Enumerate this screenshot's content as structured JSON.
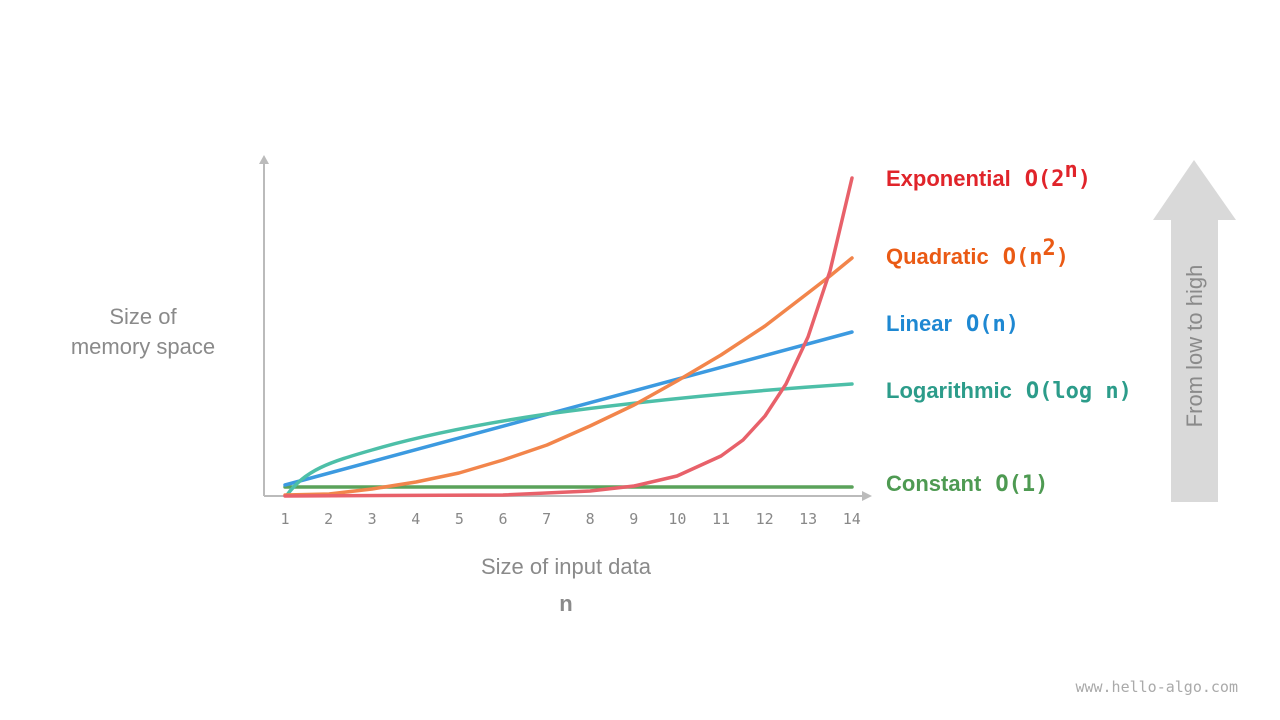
{
  "axes": {
    "y_label_lines": [
      "Size of",
      "memory space"
    ],
    "x_label": "Size of input data",
    "x_variable": "n",
    "x_ticks": [
      "1",
      "2",
      "3",
      "4",
      "5",
      "6",
      "7",
      "8",
      "9",
      "10",
      "11",
      "12",
      "13",
      "14"
    ]
  },
  "curves": [
    {
      "name": "Exponential",
      "notation": [
        "O(2",
        "n",
        ")"
      ]
    },
    {
      "name": "Quadratic",
      "notation": [
        "O(n",
        "2",
        ")"
      ]
    },
    {
      "name": "Linear",
      "notation": [
        "O(n)"
      ]
    },
    {
      "name": "Logarithmic",
      "notation": [
        "O(",
        "log",
        " n)"
      ]
    },
    {
      "name": "Constant",
      "notation": [
        "O(1)"
      ]
    }
  ],
  "arrow_label": "From  low to high",
  "watermark": "www.hello-algo.com"
}
